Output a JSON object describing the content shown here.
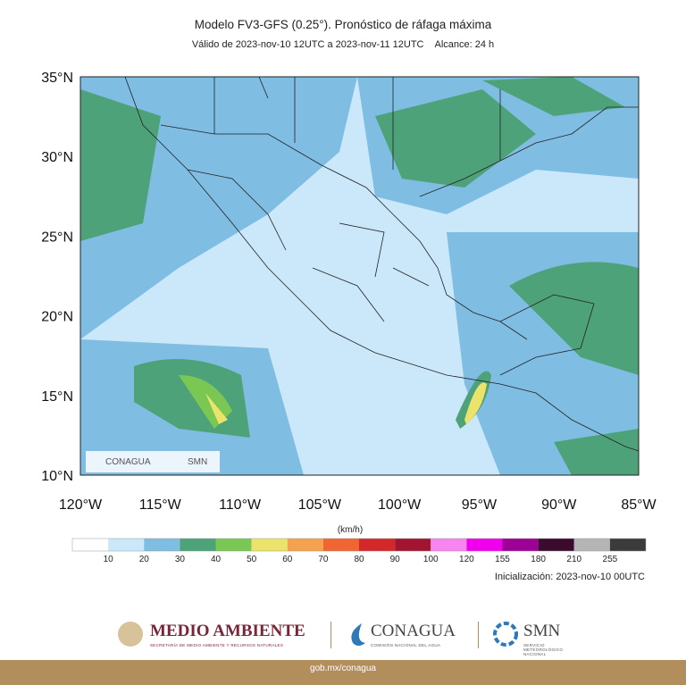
{
  "header": {
    "title": "Modelo FV3-GFS (0.25°). Pronóstico de ráfaga máxima",
    "valid": "Válido de 2023-nov-10 12UTC a 2023-nov-11 12UTC",
    "range": "Alcance: 24 h"
  },
  "map": {
    "lat_ticks": [
      "35°N",
      "30°N",
      "25°N",
      "20°N",
      "15°N",
      "10°N"
    ],
    "lon_ticks": [
      "120°W",
      "115°W",
      "110°W",
      "105°W",
      "100°W",
      "95°W",
      "90°W",
      "85°W"
    ],
    "inset_logos": [
      "CONAGUA",
      "SMN"
    ]
  },
  "colorbar": {
    "unit": "(km/h)",
    "labels": [
      "10",
      "20",
      "30",
      "40",
      "50",
      "60",
      "70",
      "80",
      "90",
      "100",
      "120",
      "155",
      "180",
      "210",
      "255"
    ],
    "colors": [
      "#ffffff",
      "#cbe8fa",
      "#7fbde3",
      "#4ea27a",
      "#7ac853",
      "#ece46a",
      "#f4a24e",
      "#f06532",
      "#d3282b",
      "#a11530",
      "#f884ef",
      "#f000ec",
      "#9c0094",
      "#3a0b2c",
      "#b5b5b5",
      "#3b3b3b"
    ]
  },
  "init": "Inicialización: 2023-nov-10 00UTC",
  "footer": {
    "semarnat": "MEDIO AMBIENTE",
    "semarnat_sub": "SECRETARÍA DE MEDIO AMBIENTE Y RECURSOS NATURALES",
    "conagua": "CONAGUA",
    "conagua_sub": "COMISIÓN NACIONAL DEL AGUA",
    "smn": "SMN",
    "smn_sub": "SERVICIO METEOROLÓGICO NACIONAL",
    "url": "gob.mx/conagua"
  }
}
